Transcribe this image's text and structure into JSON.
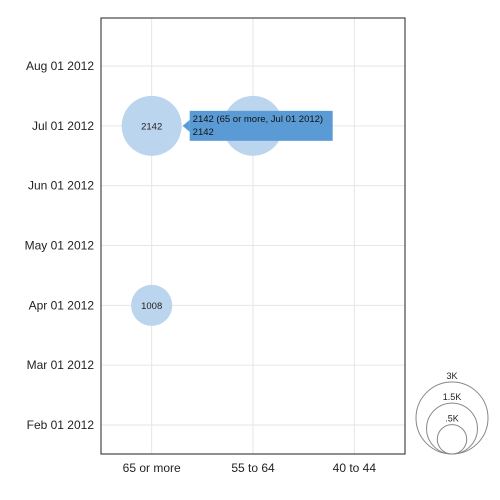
{
  "chart_data": {
    "type": "scatter",
    "subtype": "bubble",
    "title": "",
    "xlabel": "",
    "ylabel": "",
    "x_categories": [
      "65 or more",
      "55 to 64",
      "40 to 44"
    ],
    "y_dates": [
      "Feb 01 2012",
      "Mar 01 2012",
      "Apr 01 2012",
      "May 01 2012",
      "Jun 01 2012",
      "Jul 01 2012",
      "Aug 01 2012"
    ],
    "points": [
      {
        "x": "65 or more",
        "y": "Jul 01 2012",
        "value": 2142,
        "label": "2142"
      },
      {
        "x": "55 to 64",
        "y": "Jul 01 2012",
        "value": 2142,
        "label": "2142"
      },
      {
        "x": "65 or more",
        "y": "Apr 01 2012",
        "value": 1008,
        "label": "1008"
      }
    ],
    "bubble_color": "#bcd5ee",
    "grid": true,
    "size_legend": {
      "position": "bottom-right",
      "entries": [
        {
          "value": 3000,
          "label": "3K"
        },
        {
          "value": 1500,
          "label": "1.5K"
        },
        {
          "value": 500,
          "label": ".5K"
        }
      ]
    },
    "tooltip": {
      "line1": "2142 (65 or more, Jul 01 2012)",
      "line2": "2142",
      "color": "#5b9bd5"
    }
  }
}
